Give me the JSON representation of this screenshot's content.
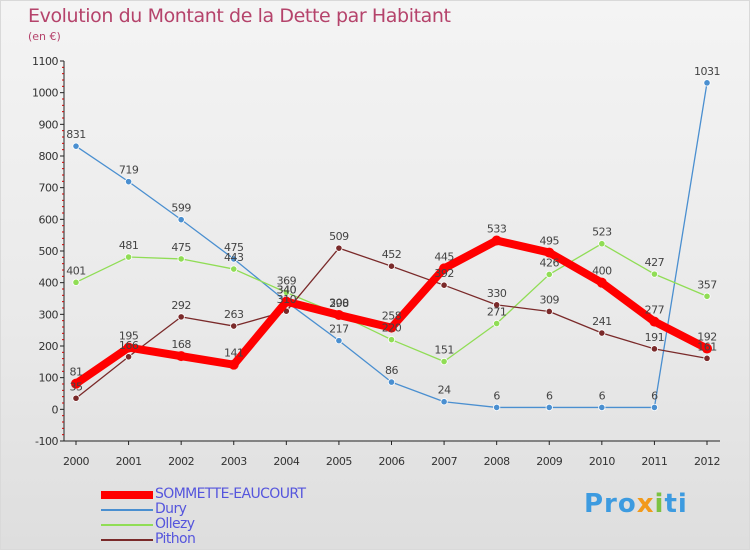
{
  "chart_data": {
    "type": "line",
    "title": "Evolution du Montant de la Dette par Habitant",
    "subtitle": "(en €)",
    "x": [
      "2000",
      "2001",
      "2002",
      "2003",
      "2004",
      "2005",
      "2006",
      "2007",
      "2008",
      "2009",
      "2010",
      "2011",
      "2012"
    ],
    "ylim": [
      -100,
      1100
    ],
    "yticks": [
      -100,
      0,
      100,
      200,
      300,
      400,
      500,
      600,
      700,
      800,
      900,
      1000,
      1100
    ],
    "grid": false,
    "legend_position": "bottom-left",
    "series": [
      {
        "name": "SOMMETTE-EAUCOURT",
        "color": "#ff0000",
        "values": [
          81,
          195,
          168,
          141,
          340,
          298,
          258,
          445,
          533,
          495,
          400,
          277,
          192
        ]
      },
      {
        "name": "Dury",
        "color": "#4a8fd0",
        "values": [
          831,
          719,
          599,
          475,
          340,
          217,
          86,
          24,
          6,
          6,
          6,
          6,
          1031
        ]
      },
      {
        "name": "Ollezy",
        "color": "#90dd55",
        "values": [
          401,
          481,
          475,
          443,
          369,
          300,
          220,
          151,
          271,
          426,
          523,
          427,
          357
        ]
      },
      {
        "name": "Pithon",
        "color": "#7a2a2a",
        "values": [
          35,
          166,
          292,
          263,
          310,
          509,
          452,
          392,
          330,
          309,
          241,
          191,
          161
        ]
      }
    ]
  },
  "logo": {
    "part1": "Pro",
    "part2": "x",
    "part3": "i",
    "part4": "ti"
  }
}
